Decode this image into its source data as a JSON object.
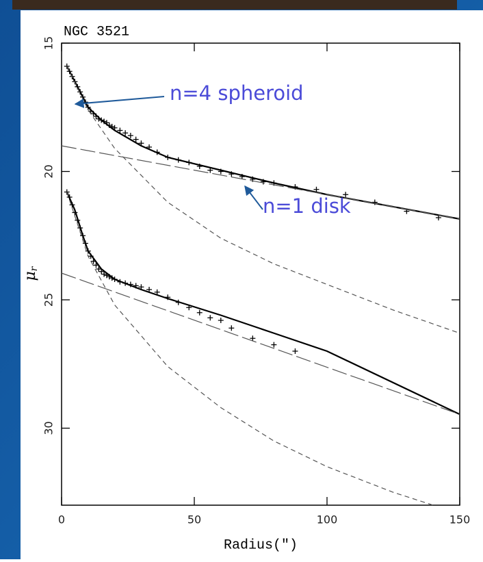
{
  "chart_data": {
    "type": "scatter",
    "title": "NGC 3521",
    "xlabel": "Radius(\")",
    "ylabel": {
      "text": "μ",
      "sub": "r"
    },
    "xlim": [
      0,
      150
    ],
    "ylim": [
      33,
      15
    ],
    "xticks": [
      0,
      50,
      100,
      150
    ],
    "yticks": [
      15,
      20,
      25,
      30
    ],
    "annotations": [
      "n=4 spheroid",
      "n=1 disk"
    ],
    "annotation_color": "#4b4bd8",
    "arrow_color": "#1f5a9a",
    "series": [
      {
        "style": "markers",
        "color": "#000000",
        "x": [
          2,
          3,
          4,
          5,
          6,
          7,
          8,
          9,
          10,
          11,
          12,
          13,
          14,
          15,
          16,
          17,
          18,
          19,
          20,
          22,
          24,
          26,
          28,
          30,
          33,
          36,
          40,
          44,
          48,
          52,
          56,
          60,
          64,
          68,
          72,
          76,
          80,
          88,
          96,
          107,
          118,
          130,
          142
        ],
        "values": [
          15.9,
          16.1,
          16.3,
          16.5,
          16.7,
          16.9,
          17.1,
          17.3,
          17.5,
          17.65,
          17.75,
          17.85,
          17.95,
          18.0,
          18.05,
          18.1,
          18.2,
          18.25,
          18.3,
          18.4,
          18.5,
          18.6,
          18.75,
          18.9,
          19.05,
          19.25,
          19.45,
          19.55,
          19.65,
          19.8,
          19.95,
          20.0,
          20.1,
          20.2,
          20.3,
          20.4,
          20.45,
          20.6,
          20.7,
          20.9,
          21.2,
          21.55,
          21.8
        ]
      },
      {
        "style": "solid",
        "color": "#000000",
        "x": [
          2,
          5,
          8,
          10,
          15,
          20,
          30,
          40,
          60,
          80,
          100,
          150
        ],
        "values": [
          15.9,
          16.5,
          17.1,
          17.5,
          18.0,
          18.4,
          19.0,
          19.45,
          19.95,
          20.45,
          20.9,
          21.85
        ]
      },
      {
        "style": "longdash",
        "color": "#555555",
        "x": [
          0,
          150
        ],
        "values": [
          19.0,
          21.85
        ]
      },
      {
        "style": "dashed",
        "color": "#555555",
        "x": [
          2,
          10,
          20,
          40,
          60,
          80,
          100,
          125,
          150
        ],
        "values": [
          15.9,
          17.6,
          19.1,
          21.2,
          22.6,
          23.6,
          24.4,
          25.4,
          26.3
        ]
      },
      {
        "style": "markers",
        "color": "#000000",
        "x": [
          2,
          3,
          4,
          5,
          6,
          7,
          8,
          9,
          10,
          11,
          12,
          13,
          14,
          15,
          16,
          17,
          18,
          19,
          20,
          22,
          24,
          26,
          28,
          30,
          33,
          36,
          40,
          44,
          48,
          52,
          56,
          60,
          64,
          72,
          80,
          88
        ],
        "values": [
          20.8,
          21.0,
          21.3,
          21.6,
          21.9,
          22.2,
          22.5,
          22.8,
          23.1,
          23.3,
          23.5,
          23.65,
          23.8,
          23.9,
          24.0,
          24.05,
          24.1,
          24.15,
          24.2,
          24.3,
          24.35,
          24.4,
          24.45,
          24.5,
          24.6,
          24.7,
          24.9,
          25.1,
          25.3,
          25.5,
          25.7,
          25.8,
          26.1,
          26.5,
          26.75,
          27.0
        ]
      },
      {
        "style": "solid",
        "color": "#000000",
        "x": [
          2,
          5,
          8,
          10,
          15,
          20,
          30,
          40,
          60,
          80,
          100,
          150
        ],
        "values": [
          20.8,
          21.5,
          22.5,
          23.1,
          23.8,
          24.2,
          24.6,
          24.95,
          25.6,
          26.3,
          27.0,
          29.46
        ]
      },
      {
        "style": "longdash",
        "color": "#555555",
        "x": [
          0,
          150
        ],
        "values": [
          23.96,
          29.46
        ]
      },
      {
        "style": "dashed",
        "color": "#555555",
        "x": [
          2,
          10,
          20,
          40,
          60,
          80,
          100,
          125,
          140
        ],
        "values": [
          20.8,
          23.3,
          25.2,
          27.6,
          29.2,
          30.5,
          31.5,
          32.5,
          33.0
        ]
      }
    ]
  }
}
